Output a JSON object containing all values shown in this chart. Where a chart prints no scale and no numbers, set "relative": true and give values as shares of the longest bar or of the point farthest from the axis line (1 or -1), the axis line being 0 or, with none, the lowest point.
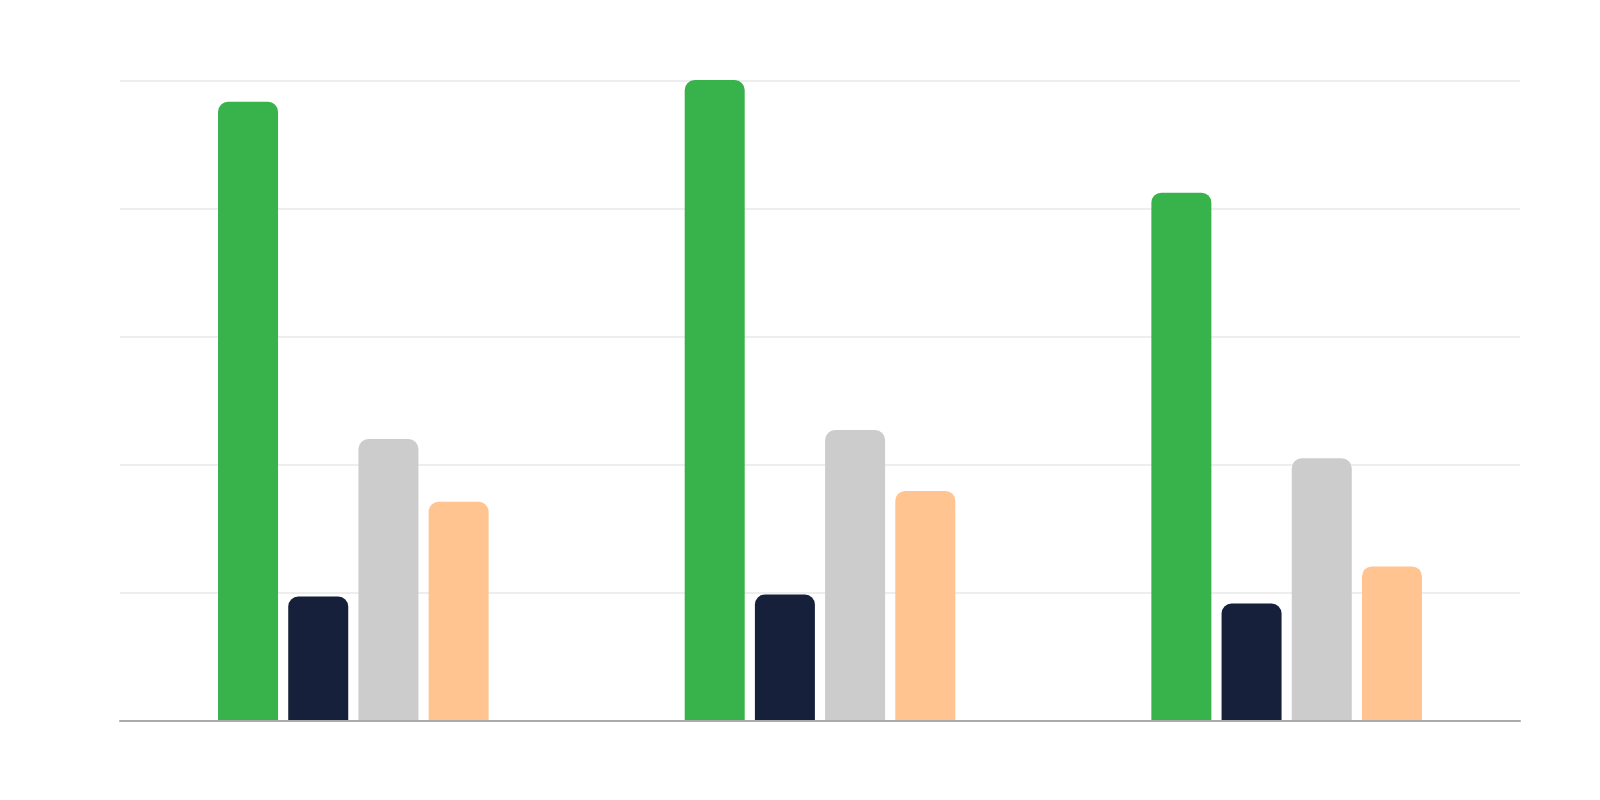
{
  "chart_data": {
    "type": "bar",
    "relative": true,
    "categories": [
      null,
      null,
      null
    ],
    "grid": true,
    "series": [
      {
        "color": "#38b24b",
        "values": [
          0.966,
          1,
          0.824
        ]
      },
      {
        "color": "#17203b",
        "values": [
          0.193,
          0.196,
          0.182
        ]
      },
      {
        "color": "#cccccc",
        "values": [
          0.439,
          0.453,
          0.409
        ]
      },
      {
        "color": "#ffc48f",
        "values": [
          0.341,
          0.358,
          0.24
        ]
      }
    ]
  }
}
